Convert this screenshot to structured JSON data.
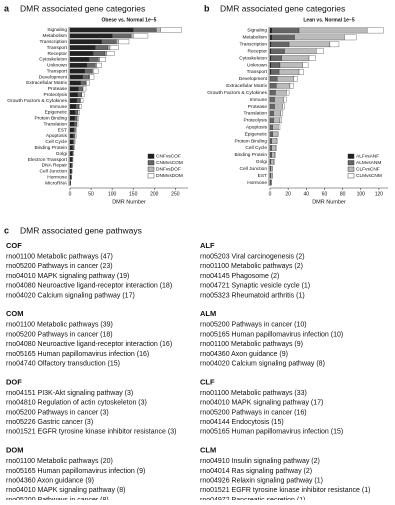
{
  "chart_data": [
    {
      "type": "stacked-barh",
      "panel": "a",
      "title": "DMR associated gene categories",
      "subtitle": "Obese vs. Normal 1e−5",
      "xlabel": "DMR Number",
      "categories": [
        "Signaling",
        "Metabolism",
        "Transcription",
        "Transport",
        "Receptor",
        "Cytoskeleton",
        "Unknown",
        "Transport",
        "Development",
        "Extracellular Matrix",
        "Protease",
        "Proteolysis",
        "Growth Factors & Cytokines",
        "Immune",
        "Epigenetic",
        "Protein Binding",
        "Translation",
        "EST",
        "Apoptosis",
        "Cell Cycle",
        "Binding Protein",
        "Golgi",
        "Electron Transport",
        "DNA Repair",
        "Cell Junction",
        "Hormone",
        "MicroRNA"
      ],
      "series": [
        {
          "name": "CNFvsCOF",
          "color": "#222222",
          "values": [
            150,
            100,
            75,
            60,
            55,
            45,
            40,
            35,
            30,
            25,
            20,
            18,
            16,
            14,
            12,
            11,
            10,
            9,
            8,
            7,
            6,
            5,
            4,
            3,
            3,
            2,
            1
          ]
        },
        {
          "name": "CNMvsCOM",
          "color": "#666666",
          "values": [
            55,
            45,
            35,
            30,
            28,
            22,
            20,
            18,
            15,
            12,
            10,
            9,
            8,
            7,
            6,
            5,
            5,
            4,
            4,
            3,
            3,
            2,
            2,
            2,
            1,
            1,
            1
          ]
        },
        {
          "name": "DNFvsDOF",
          "color": "#bbbbbb",
          "values": [
            10,
            5,
            5,
            5,
            4,
            3,
            3,
            2,
            2,
            2,
            1,
            1,
            1,
            1,
            1,
            1,
            1,
            0,
            0,
            0,
            0,
            0,
            0,
            0,
            0,
            0,
            0
          ]
        },
        {
          "name": "DNMvsDOM",
          "color": "#ffffff",
          "values": [
            50,
            35,
            25,
            20,
            18,
            15,
            12,
            12,
            10,
            8,
            7,
            6,
            6,
            5,
            4,
            4,
            3,
            3,
            3,
            2,
            2,
            2,
            1,
            1,
            1,
            1,
            0
          ]
        }
      ],
      "xlim": [
        0,
        280
      ],
      "xticks": [
        0,
        50,
        100,
        150,
        200,
        250
      ],
      "legend": "lower right"
    },
    {
      "type": "stacked-barh",
      "panel": "b",
      "title": "DMR associated gene categories",
      "subtitle": "Lean vs. Normal 1e−5",
      "xlabel": "DMR Number",
      "categories": [
        "Signaling",
        "Metabolism",
        "Transcription",
        "Receptor",
        "Cytoskeleton",
        "Unknown",
        "Transport",
        "Development",
        "Extracellular Matrix",
        "Growth Factors & Cytokines",
        "Immune",
        "Protease",
        "Translation",
        "Proteolysis",
        "Apoptosis",
        "Epigenetic",
        "Protein Binding",
        "Cell Cycle",
        "Binding Protein",
        "Golgi",
        "Cell Junction",
        "EST",
        "Hormone"
      ],
      "series": [
        {
          "name": "ALFvsANF",
          "color": "#222222",
          "values": [
            2,
            2,
            1,
            1,
            1,
            1,
            1,
            0,
            0,
            0,
            0,
            0,
            0,
            0,
            0,
            0,
            0,
            0,
            0,
            0,
            0,
            0,
            0
          ]
        },
        {
          "name": "ALMvsANM",
          "color": "#666666",
          "values": [
            30,
            25,
            20,
            15,
            12,
            10,
            9,
            8,
            7,
            6,
            5,
            5,
            4,
            4,
            3,
            3,
            2,
            2,
            2,
            1,
            1,
            1,
            1
          ]
        },
        {
          "name": "CLFvsCNF",
          "color": "#bbbbbb",
          "values": [
            75,
            55,
            45,
            35,
            30,
            25,
            22,
            18,
            15,
            12,
            10,
            9,
            8,
            7,
            6,
            5,
            5,
            4,
            3,
            3,
            2,
            2,
            1
          ]
        },
        {
          "name": "CLMvsCNM",
          "color": "#ffffff",
          "values": [
            18,
            13,
            10,
            8,
            7,
            6,
            5,
            4,
            4,
            3,
            3,
            2,
            2,
            2,
            2,
            1,
            1,
            1,
            1,
            1,
            0,
            0,
            0
          ]
        }
      ],
      "xlim": [
        0,
        130
      ],
      "xticks": [
        0,
        20,
        40,
        60,
        80,
        100,
        120
      ],
      "legend": "lower right"
    }
  ],
  "pathways": {
    "panel": "c",
    "title": "DMR associated gene pathways",
    "columns": [
      [
        {
          "heading": "COF",
          "items": [
            "rno01100 Metabolic pathways (47)",
            "rno05200 Pathways in cancer (23)",
            "rno04010 MAPK signaling pathway (19)",
            "rno04080 Neuroactive ligand-receptor interaction (18)",
            "rno04020 Calcium signaling pathway (17)"
          ]
        },
        {
          "heading": "COM",
          "items": [
            "rno01100 Metabolic pathways (39)",
            "rno05200 Pathways in cancer (18)",
            "rno04080 Neuroactive ligand-receptor interaction (16)",
            "rno05165 Human papillomavirus infection (16)",
            "rno04740 Olfactory transduction (15)"
          ]
        },
        {
          "heading": "DOF",
          "items": [
            "rno04151 PI3K-Akt signaling pathway (3)",
            "rno04810 Regulation of actin cytoskeleton (3)",
            "rno05200 Pathways in cancer (3)",
            "rno05226 Gastric cancer (3)",
            "rno01521 EGFR tyrosine kinase inhibitor resistance (3)"
          ]
        },
        {
          "heading": "DOM",
          "items": [
            "rno01100 Metabolic pathways (20)",
            "rno05165 Human papillomavirus infection (9)",
            "rno04360 Axon guidance (9)",
            "rno04010 MAPK signaling pathway (8)",
            "rno05200 Pathways in cancer (8)"
          ]
        }
      ],
      [
        {
          "heading": "ALF",
          "items": [
            "rno05203 Viral carcinogenesis (2)",
            "rno01100 Metabolic pathways (2)",
            "rno04145 Phagosome (2)",
            "rno04721 Synaptic vesicle cycle (1)",
            "rno05323 Rheumatoid arthritis (1)"
          ]
        },
        {
          "heading": "ALM",
          "items": [
            "rno05200 Pathways in cancer (10)",
            "rno05165 Human papillomavirus infection (10)",
            "rno01100 Metabolic pathways (9)",
            "rno04360 Axon guidance (9)",
            "rno04020 Calcium signaling pathway (8)"
          ]
        },
        {
          "heading": "CLF",
          "items": [
            "rno01100 Metabolic pathways (33)",
            "rno04010 MAPK signaling pathway (17)",
            "rno05200 Pathways in cancer (16)",
            "rno04144 Endocytosis (15)",
            "rno05165 Human papillomavirus infection (15)"
          ]
        },
        {
          "heading": "CLM",
          "items": [
            "rno04910 Insulin signaling pathway (2)",
            "rno04014 Ras signaling pathway (2)",
            "rno04926 Relaxin signaling pathway (1)",
            "rno01521 EGFR tyrosine kinase inhibitor resistance (1)",
            "rno04972 Pancreatic secretion (1)"
          ]
        }
      ]
    ]
  }
}
